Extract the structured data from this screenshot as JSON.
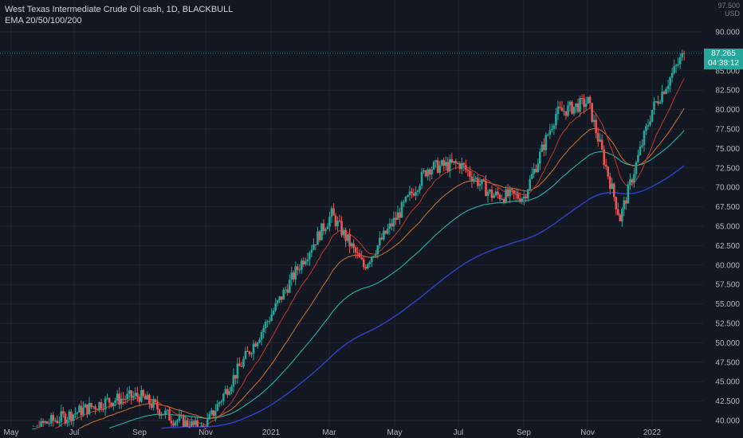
{
  "legend": {
    "title": "West Texas Intermediate Crude Oil cash, 1D, BLACKBULL",
    "indicator": "EMA 20/50/100/200"
  },
  "unit": {
    "line1": "97.500",
    "line2": "USD"
  },
  "last_price": {
    "value": "87.265",
    "countdown": "04:38:12"
  },
  "colors": {
    "background": "#131722",
    "grid": "#1f2433",
    "up": "#26a69a",
    "down": "#ef5350",
    "ema20": "#c0392b",
    "ema50": "#c87533",
    "ema100": "#26b3a6",
    "ema200": "#2f3eb5",
    "axis_text": "#b2b5be"
  },
  "chart_data": {
    "type": "candlestick",
    "title": "West Texas Intermediate Crude Oil cash, 1D, BLACKBULL",
    "y_unit": "USD",
    "ylim": [
      39.5,
      92.0
    ],
    "y_ticks": [
      "40.000",
      "42.500",
      "45.000",
      "47.500",
      "50.000",
      "52.500",
      "55.000",
      "57.500",
      "60.000",
      "62.500",
      "65.000",
      "67.500",
      "70.000",
      "72.500",
      "75.000",
      "77.500",
      "80.000",
      "82.500",
      "85.000",
      "87.500",
      "90.000"
    ],
    "x_ticks": [
      "May",
      "Jul",
      "Sep",
      "Nov",
      "2021",
      "Mar",
      "May",
      "Jul",
      "Sep",
      "Nov",
      "2022"
    ],
    "grid": true,
    "last_price": 87.265,
    "price_path": [
      {
        "month": "May 2020",
        "close": 35.0
      },
      {
        "month": "Jun 2020",
        "close": 39.5
      },
      {
        "month": "Jul 2020",
        "close": 41.0
      },
      {
        "month": "Aug 2020",
        "close": 42.5
      },
      {
        "month": "Sep 2020",
        "close": 43.2
      },
      {
        "month": "Oct 2020",
        "close": 40.3
      },
      {
        "month": "Nov 2020",
        "close": 38.8
      },
      {
        "month": "Dec 2020",
        "close": 46.0
      },
      {
        "month": "Jan 2021",
        "close": 52.8
      },
      {
        "month": "Feb 2021",
        "close": 60.0
      },
      {
        "month": "Mar 2021",
        "close": 66.5
      },
      {
        "month": "Apr 2021",
        "close": 59.8
      },
      {
        "month": "May 2021",
        "close": 66.0
      },
      {
        "month": "Jun 2021",
        "close": 72.5
      },
      {
        "month": "Jul 2021",
        "close": 73.0
      },
      {
        "month": "Aug 2021",
        "close": 69.0
      },
      {
        "month": "Sep 2021",
        "close": 68.8
      },
      {
        "month": "Oct 2021",
        "close": 79.5
      },
      {
        "month": "Nov 2021",
        "close": 81.0
      },
      {
        "month": "Dec 2021",
        "close": 66.0
      },
      {
        "month": "Jan 2022",
        "close": 80.0
      },
      {
        "month": "Feb 2022",
        "close": 87.265
      }
    ],
    "ema_end_values": [
      {
        "name": "EMA 20",
        "value": 81.0
      },
      {
        "name": "EMA 50",
        "value": 78.5
      },
      {
        "name": "EMA 100",
        "value": 76.3
      },
      {
        "name": "EMA 200",
        "value": 71.7
      }
    ]
  }
}
